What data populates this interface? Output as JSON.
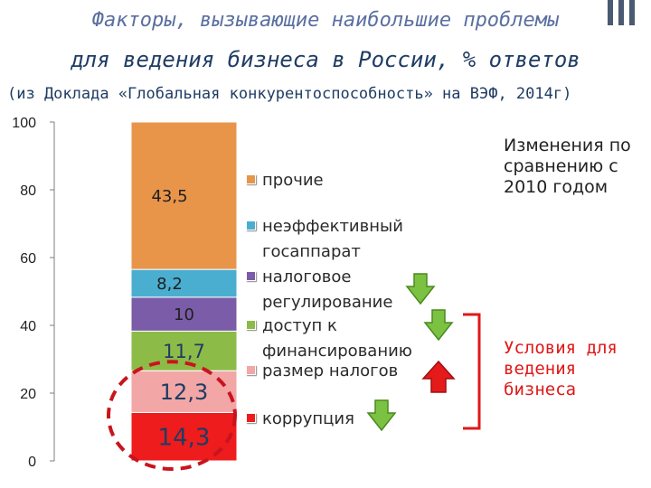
{
  "header": {
    "title_line1": "Факторы, вызывающие наибольшие проблемы",
    "title_line2": "для ведения бизнеса в России, % ответов",
    "subtitle": "(из Доклада «Глобальная конкурентоспособность» на ВЭФ, 2014г)"
  },
  "notes": {
    "changes": "Изменения по сравнению с 2010 годом",
    "conditions": "Условия для ведения бизнеса"
  },
  "chart_data": {
    "type": "bar",
    "stacked": true,
    "yticks": [
      "0",
      "20",
      "40",
      "60",
      "80",
      "100"
    ],
    "ylim": [
      0,
      100
    ],
    "series": [
      {
        "name": "коррупция",
        "value": 14.3,
        "label": "14,3",
        "color": "#ee1c1c",
        "trend": "down"
      },
      {
        "name": "размер налогов",
        "value": 12.3,
        "label": "12,3",
        "color": "#f2a6a6",
        "trend": "up"
      },
      {
        "name": "доступ к финансированию",
        "value": 11.7,
        "label": "11,7",
        "color": "#8dbb48",
        "trend": "down"
      },
      {
        "name": "налоговое регулирование",
        "value": 10,
        "label": "10",
        "color": "#7a5ca8",
        "trend": "down"
      },
      {
        "name": "неэффективный госаппарат",
        "value": 8.2,
        "label": "8,2",
        "color": "#4aaed0",
        "trend": "none"
      },
      {
        "name": "прочие",
        "value": 43.5,
        "label": "43,5",
        "color": "#e8954a",
        "trend": "none"
      }
    ],
    "grid": false,
    "legend": "right"
  }
}
